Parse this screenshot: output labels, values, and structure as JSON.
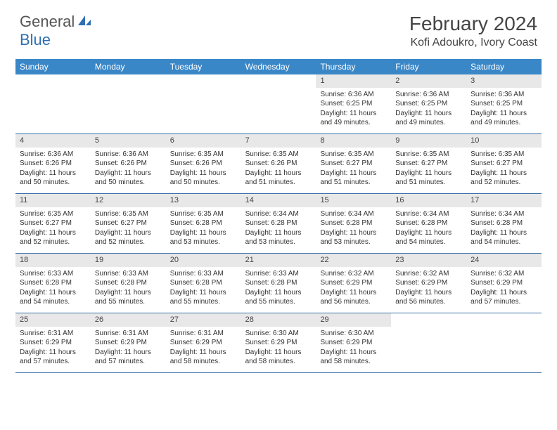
{
  "logo": {
    "part1": "General",
    "part2": "Blue"
  },
  "title": "February 2024",
  "location": "Kofi Adoukro, Ivory Coast",
  "weekdays": [
    "Sunday",
    "Monday",
    "Tuesday",
    "Wednesday",
    "Thursday",
    "Friday",
    "Saturday"
  ],
  "colors": {
    "header_bg": "#3a87c8",
    "header_text": "#ffffff",
    "daynum_bg": "#e8e8e8",
    "row_border": "#3a6fa8",
    "logo_blue": "#2f6fb3",
    "text": "#333333"
  },
  "weeks": [
    [
      {
        "empty": true
      },
      {
        "empty": true
      },
      {
        "empty": true
      },
      {
        "empty": true
      },
      {
        "num": "1",
        "sunrise": "Sunrise: 6:36 AM",
        "sunset": "Sunset: 6:25 PM",
        "daylight1": "Daylight: 11 hours",
        "daylight2": "and 49 minutes."
      },
      {
        "num": "2",
        "sunrise": "Sunrise: 6:36 AM",
        "sunset": "Sunset: 6:25 PM",
        "daylight1": "Daylight: 11 hours",
        "daylight2": "and 49 minutes."
      },
      {
        "num": "3",
        "sunrise": "Sunrise: 6:36 AM",
        "sunset": "Sunset: 6:25 PM",
        "daylight1": "Daylight: 11 hours",
        "daylight2": "and 49 minutes."
      }
    ],
    [
      {
        "num": "4",
        "sunrise": "Sunrise: 6:36 AM",
        "sunset": "Sunset: 6:26 PM",
        "daylight1": "Daylight: 11 hours",
        "daylight2": "and 50 minutes."
      },
      {
        "num": "5",
        "sunrise": "Sunrise: 6:36 AM",
        "sunset": "Sunset: 6:26 PM",
        "daylight1": "Daylight: 11 hours",
        "daylight2": "and 50 minutes."
      },
      {
        "num": "6",
        "sunrise": "Sunrise: 6:35 AM",
        "sunset": "Sunset: 6:26 PM",
        "daylight1": "Daylight: 11 hours",
        "daylight2": "and 50 minutes."
      },
      {
        "num": "7",
        "sunrise": "Sunrise: 6:35 AM",
        "sunset": "Sunset: 6:26 PM",
        "daylight1": "Daylight: 11 hours",
        "daylight2": "and 51 minutes."
      },
      {
        "num": "8",
        "sunrise": "Sunrise: 6:35 AM",
        "sunset": "Sunset: 6:27 PM",
        "daylight1": "Daylight: 11 hours",
        "daylight2": "and 51 minutes."
      },
      {
        "num": "9",
        "sunrise": "Sunrise: 6:35 AM",
        "sunset": "Sunset: 6:27 PM",
        "daylight1": "Daylight: 11 hours",
        "daylight2": "and 51 minutes."
      },
      {
        "num": "10",
        "sunrise": "Sunrise: 6:35 AM",
        "sunset": "Sunset: 6:27 PM",
        "daylight1": "Daylight: 11 hours",
        "daylight2": "and 52 minutes."
      }
    ],
    [
      {
        "num": "11",
        "sunrise": "Sunrise: 6:35 AM",
        "sunset": "Sunset: 6:27 PM",
        "daylight1": "Daylight: 11 hours",
        "daylight2": "and 52 minutes."
      },
      {
        "num": "12",
        "sunrise": "Sunrise: 6:35 AM",
        "sunset": "Sunset: 6:27 PM",
        "daylight1": "Daylight: 11 hours",
        "daylight2": "and 52 minutes."
      },
      {
        "num": "13",
        "sunrise": "Sunrise: 6:35 AM",
        "sunset": "Sunset: 6:28 PM",
        "daylight1": "Daylight: 11 hours",
        "daylight2": "and 53 minutes."
      },
      {
        "num": "14",
        "sunrise": "Sunrise: 6:34 AM",
        "sunset": "Sunset: 6:28 PM",
        "daylight1": "Daylight: 11 hours",
        "daylight2": "and 53 minutes."
      },
      {
        "num": "15",
        "sunrise": "Sunrise: 6:34 AM",
        "sunset": "Sunset: 6:28 PM",
        "daylight1": "Daylight: 11 hours",
        "daylight2": "and 53 minutes."
      },
      {
        "num": "16",
        "sunrise": "Sunrise: 6:34 AM",
        "sunset": "Sunset: 6:28 PM",
        "daylight1": "Daylight: 11 hours",
        "daylight2": "and 54 minutes."
      },
      {
        "num": "17",
        "sunrise": "Sunrise: 6:34 AM",
        "sunset": "Sunset: 6:28 PM",
        "daylight1": "Daylight: 11 hours",
        "daylight2": "and 54 minutes."
      }
    ],
    [
      {
        "num": "18",
        "sunrise": "Sunrise: 6:33 AM",
        "sunset": "Sunset: 6:28 PM",
        "daylight1": "Daylight: 11 hours",
        "daylight2": "and 54 minutes."
      },
      {
        "num": "19",
        "sunrise": "Sunrise: 6:33 AM",
        "sunset": "Sunset: 6:28 PM",
        "daylight1": "Daylight: 11 hours",
        "daylight2": "and 55 minutes."
      },
      {
        "num": "20",
        "sunrise": "Sunrise: 6:33 AM",
        "sunset": "Sunset: 6:28 PM",
        "daylight1": "Daylight: 11 hours",
        "daylight2": "and 55 minutes."
      },
      {
        "num": "21",
        "sunrise": "Sunrise: 6:33 AM",
        "sunset": "Sunset: 6:28 PM",
        "daylight1": "Daylight: 11 hours",
        "daylight2": "and 55 minutes."
      },
      {
        "num": "22",
        "sunrise": "Sunrise: 6:32 AM",
        "sunset": "Sunset: 6:29 PM",
        "daylight1": "Daylight: 11 hours",
        "daylight2": "and 56 minutes."
      },
      {
        "num": "23",
        "sunrise": "Sunrise: 6:32 AM",
        "sunset": "Sunset: 6:29 PM",
        "daylight1": "Daylight: 11 hours",
        "daylight2": "and 56 minutes."
      },
      {
        "num": "24",
        "sunrise": "Sunrise: 6:32 AM",
        "sunset": "Sunset: 6:29 PM",
        "daylight1": "Daylight: 11 hours",
        "daylight2": "and 57 minutes."
      }
    ],
    [
      {
        "num": "25",
        "sunrise": "Sunrise: 6:31 AM",
        "sunset": "Sunset: 6:29 PM",
        "daylight1": "Daylight: 11 hours",
        "daylight2": "and 57 minutes."
      },
      {
        "num": "26",
        "sunrise": "Sunrise: 6:31 AM",
        "sunset": "Sunset: 6:29 PM",
        "daylight1": "Daylight: 11 hours",
        "daylight2": "and 57 minutes."
      },
      {
        "num": "27",
        "sunrise": "Sunrise: 6:31 AM",
        "sunset": "Sunset: 6:29 PM",
        "daylight1": "Daylight: 11 hours",
        "daylight2": "and 58 minutes."
      },
      {
        "num": "28",
        "sunrise": "Sunrise: 6:30 AM",
        "sunset": "Sunset: 6:29 PM",
        "daylight1": "Daylight: 11 hours",
        "daylight2": "and 58 minutes."
      },
      {
        "num": "29",
        "sunrise": "Sunrise: 6:30 AM",
        "sunset": "Sunset: 6:29 PM",
        "daylight1": "Daylight: 11 hours",
        "daylight2": "and 58 minutes."
      },
      {
        "empty": true
      },
      {
        "empty": true
      }
    ]
  ]
}
